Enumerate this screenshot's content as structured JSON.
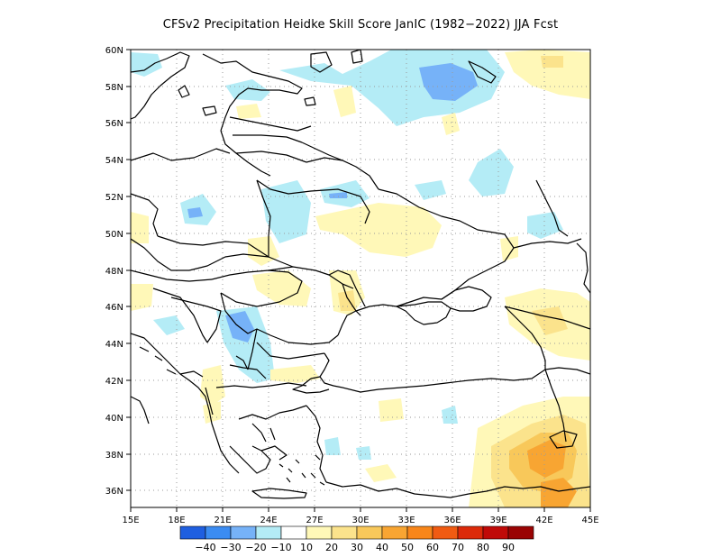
{
  "title": "CFSv2  Precipitation Heidke Skill Score JanIC (1982−2022) JJA Fcst",
  "lon_ticks": [
    "15E",
    "18E",
    "21E",
    "24E",
    "27E",
    "30E",
    "33E",
    "36E",
    "39E",
    "42E",
    "45E"
  ],
  "lat_ticks": [
    "60N",
    "58N",
    "56N",
    "54N",
    "52N",
    "50N",
    "48N",
    "46N",
    "44N",
    "42N",
    "40N",
    "38N",
    "36N"
  ],
  "colorbar": {
    "colors": [
      "#1f5fe0",
      "#3b8cf2",
      "#76b2f8",
      "#b4ecf6",
      "#ffffff",
      "#fff8b8",
      "#fbe38c",
      "#f8c85a",
      "#f8a532",
      "#f8861a",
      "#f05b12",
      "#dc2a0a",
      "#c00a08",
      "#9a0404"
    ],
    "labels": [
      "−40",
      "−30",
      "−20",
      "−10",
      "10",
      "20",
      "30",
      "40",
      "50",
      "60",
      "70",
      "80",
      "90"
    ]
  },
  "palette": {
    "light_blue": "#b4ecf6",
    "mid_blue": "#76b2f8",
    "pale_yellow": "#fff8b8",
    "yellow": "#fbe38c",
    "light_orange": "#f8c85a",
    "orange": "#f8a532"
  }
}
